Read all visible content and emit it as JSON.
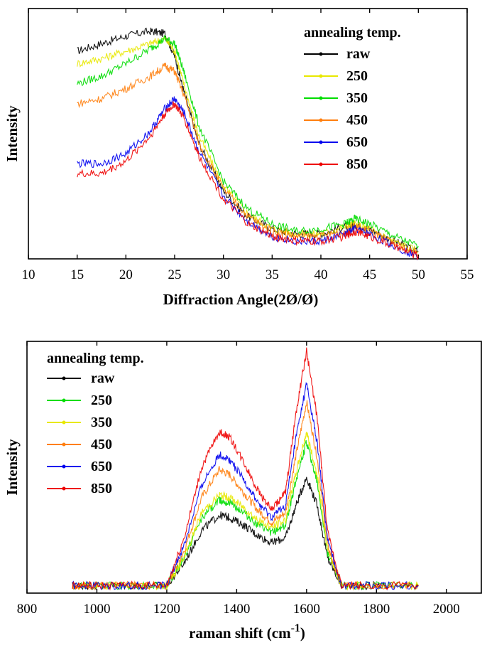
{
  "chart_data": [
    {
      "type": "line",
      "xlabel": "Diffraction Angle(2Ø/Ø)",
      "ylabel": "Intensity",
      "xlim": [
        10,
        55
      ],
      "ylim": [
        0,
        100
      ],
      "xticks": [
        10,
        15,
        20,
        25,
        30,
        35,
        40,
        45,
        50,
        55
      ],
      "legend_title": "annealing temp.",
      "legend_position": "top-right",
      "grid": false,
      "x": [
        15,
        17.5,
        20,
        22.5,
        24,
        25,
        26,
        27.5,
        30,
        32.5,
        35,
        37.5,
        40,
        42.5,
        43.5,
        45,
        47.5,
        50
      ],
      "series": [
        {
          "name": "raw",
          "color": "#000000",
          "values": [
            83,
            86,
            89,
            91,
            90,
            81,
            66,
            46,
            27,
            17,
            12,
            10,
            10,
            13,
            14,
            12,
            7,
            3
          ]
        },
        {
          "name": "250",
          "color": "#e8e800",
          "values": [
            78,
            80,
            83,
            86,
            88,
            83,
            69,
            49,
            29,
            18,
            12,
            10,
            10,
            13,
            14,
            12,
            7,
            3
          ]
        },
        {
          "name": "350",
          "color": "#00dd00",
          "values": [
            70,
            73,
            78,
            84,
            88,
            86,
            74,
            53,
            31,
            20,
            14,
            11,
            12,
            14,
            16,
            14,
            9,
            5
          ]
        },
        {
          "name": "450",
          "color": "#ff7f0e",
          "values": [
            62,
            64,
            68,
            73,
            77,
            75,
            65,
            46,
            28,
            17,
            11,
            9,
            9,
            11,
            13,
            11,
            6,
            2
          ]
        },
        {
          "name": "650",
          "color": "#0000ee",
          "values": [
            38,
            38,
            42,
            51,
            60,
            64,
            58,
            43,
            25,
            15,
            9,
            7,
            7,
            10,
            12,
            10,
            5,
            1
          ]
        },
        {
          "name": "850",
          "color": "#ee0000",
          "values": [
            34,
            34,
            39,
            49,
            58,
            62,
            56,
            41,
            24,
            14,
            9,
            7,
            7,
            9,
            11,
            9,
            5,
            1
          ]
        }
      ]
    },
    {
      "type": "line",
      "xlabel": "raman shift (cm",
      "xlabel_superscript": "-1",
      "xlabel_close": ")",
      "ylabel": "Intensity",
      "xlim": [
        800,
        2100
      ],
      "ylim": [
        0,
        100
      ],
      "xticks": [
        800,
        1000,
        1200,
        1400,
        1600,
        1800,
        2000
      ],
      "legend_title": "annealing temp.",
      "legend_position": "top-left",
      "grid": false,
      "x": [
        930,
        1000,
        1100,
        1200,
        1250,
        1300,
        1350,
        1380,
        1420,
        1460,
        1500,
        1540,
        1570,
        1600,
        1630,
        1660,
        1700,
        1800,
        1920
      ],
      "series": [
        {
          "name": "raw",
          "color": "#000000",
          "values": [
            3,
            3,
            3,
            3,
            12,
            25,
            31,
            30,
            27,
            23,
            20,
            22,
            35,
            46,
            35,
            14,
            3,
            3,
            3
          ]
        },
        {
          "name": "250",
          "color": "#00dd00",
          "values": [
            3,
            3,
            3,
            3,
            14,
            30,
            37,
            36,
            32,
            27,
            24,
            27,
            45,
            60,
            44,
            16,
            3,
            3,
            3
          ]
        },
        {
          "name": "350",
          "color": "#e8e800",
          "values": [
            3,
            3,
            3,
            3,
            14,
            32,
            39,
            38,
            34,
            29,
            26,
            29,
            48,
            64,
            47,
            17,
            3,
            3,
            3
          ]
        },
        {
          "name": "450",
          "color": "#ff7f0e",
          "values": [
            3,
            3,
            3,
            3,
            17,
            38,
            49,
            47,
            40,
            33,
            28,
            32,
            55,
            76,
            54,
            19,
            3,
            3,
            3
          ]
        },
        {
          "name": "650",
          "color": "#0000ee",
          "values": [
            3,
            3,
            3,
            3,
            19,
            43,
            55,
            53,
            45,
            36,
            30,
            35,
            62,
            83,
            60,
            21,
            3,
            3,
            3
          ]
        },
        {
          "name": "850",
          "color": "#ee0000",
          "values": [
            3,
            3,
            3,
            3,
            22,
            50,
            64,
            62,
            52,
            41,
            33,
            40,
            72,
            96,
            70,
            24,
            3,
            3,
            3
          ]
        }
      ]
    }
  ]
}
